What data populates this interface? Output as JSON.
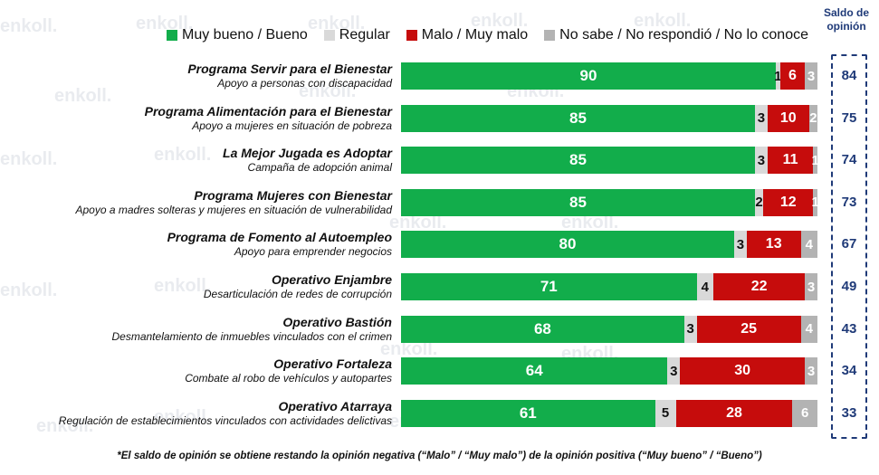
{
  "watermark": "enkoll.",
  "legend": [
    {
      "label": "Muy bueno / Bueno",
      "color": "#12ad4b"
    },
    {
      "label": "Regular",
      "color": "#d9d9d9"
    },
    {
      "label": "Malo / Muy malo",
      "color": "#c60c0c"
    },
    {
      "label": "No sabe / No respondió / No lo conoce",
      "color": "#b3b3b3"
    }
  ],
  "saldo_header": "Saldo de opinión",
  "footnote": "*El saldo de opinión se obtiene restando la opinión negativa (“Malo” / “Muy malo”) de la opinión positiva (“Muy bueno” / “Bueno”)",
  "chart_data": {
    "type": "bar",
    "orientation": "horizontal-stacked-100",
    "series_names": [
      "Muy bueno / Bueno",
      "Regular",
      "Malo / Muy malo",
      "No sabe / No respondió / No lo conoce"
    ],
    "rows": [
      {
        "title": "Programa Servir para el Bienestar",
        "subtitle": "Apoyo a personas con discapacidad",
        "values": [
          90,
          1,
          6,
          3
        ],
        "saldo": 84
      },
      {
        "title": "Programa Alimentación para el Bienestar",
        "subtitle": "Apoyo a mujeres en situación de pobreza",
        "values": [
          85,
          3,
          10,
          2
        ],
        "saldo": 75
      },
      {
        "title": "La Mejor Jugada es Adoptar",
        "subtitle": "Campaña de adopción animal",
        "values": [
          85,
          3,
          11,
          1
        ],
        "saldo": 74
      },
      {
        "title": "Programa Mujeres con Bienestar",
        "subtitle": "Apoyo a madres solteras y mujeres en situación de vulnerabilidad",
        "values": [
          85,
          2,
          12,
          1
        ],
        "saldo": 73
      },
      {
        "title": "Programa de Fomento al Autoempleo",
        "subtitle": "Apoyo para emprender negocios",
        "values": [
          80,
          3,
          13,
          4
        ],
        "saldo": 67
      },
      {
        "title": "Operativo Enjambre",
        "subtitle": "Desarticulación de redes de corrupción",
        "values": [
          71,
          4,
          22,
          3
        ],
        "saldo": 49
      },
      {
        "title": "Operativo Bastión",
        "subtitle": "Desmantelamiento de inmuebles vinculados con el crimen",
        "values": [
          68,
          3,
          25,
          4
        ],
        "saldo": 43
      },
      {
        "title": "Operativo Fortaleza",
        "subtitle": "Combate al robo de vehículos y autopartes",
        "values": [
          64,
          3,
          30,
          3
        ],
        "saldo": 34
      },
      {
        "title": "Operativo Atarraya",
        "subtitle": "Regulación de establecimientos vinculados con actividades delictivas",
        "values": [
          61,
          5,
          28,
          6
        ],
        "saldo": 33
      }
    ]
  }
}
